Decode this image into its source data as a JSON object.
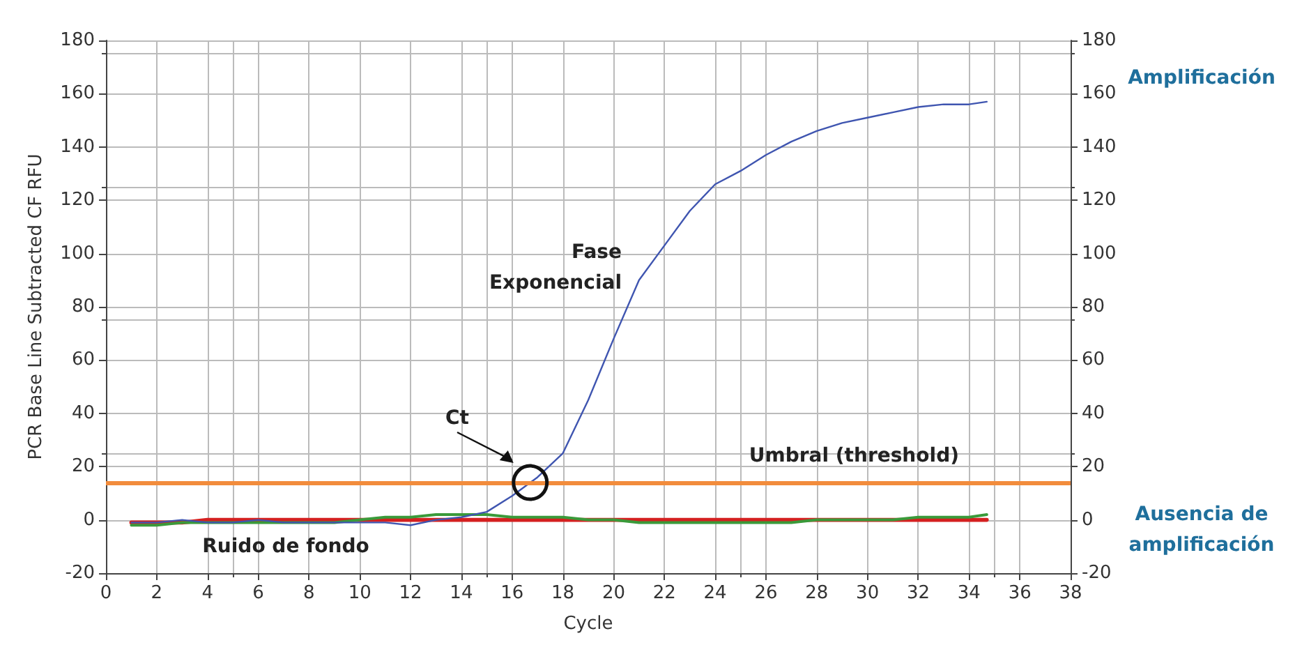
{
  "chart_data": {
    "type": "line",
    "xlabel": "Cycle",
    "ylabel": "PCR Base Line Subtracted CF RFU",
    "x": [
      1,
      2,
      3,
      4,
      5,
      6,
      7,
      8,
      9,
      10,
      11,
      12,
      13,
      14,
      15,
      16,
      17,
      18,
      19,
      20,
      21,
      22,
      23,
      24,
      25,
      26,
      27,
      28,
      29,
      30,
      31,
      32,
      33,
      34,
      34.7
    ],
    "series": [
      {
        "color": "#3f55b0",
        "values": [
          -1,
          -1,
          0,
          -1,
          -1,
          0,
          -1,
          -1,
          -1,
          -1,
          -1,
          -2,
          0,
          1,
          3,
          9,
          16,
          25,
          45,
          68,
          90,
          103,
          116,
          126,
          131,
          137,
          142,
          146,
          149,
          151,
          153,
          155,
          156,
          156,
          157
        ]
      },
      {
        "color": "#3a9a3a",
        "values": [
          -2,
          -2,
          -1,
          -1,
          -1,
          -1,
          -1,
          -1,
          -1,
          0,
          1,
          1,
          2,
          2,
          2,
          1,
          1,
          1,
          0,
          0,
          -1,
          -1,
          -1,
          -1,
          -1,
          -1,
          -1,
          0,
          0,
          0,
          0,
          1,
          1,
          1,
          2
        ]
      },
      {
        "color": "#d42020",
        "values": [
          -1,
          -1,
          -1,
          0,
          0,
          0,
          0,
          0,
          0,
          0,
          0,
          0,
          0,
          0,
          0,
          0,
          0,
          0,
          0,
          0,
          0,
          0,
          0,
          0,
          0,
          0,
          0,
          0,
          0,
          0,
          0,
          0,
          0,
          0,
          0
        ]
      }
    ],
    "xlim": [
      0,
      38
    ],
    "xticks": [
      0,
      2,
      4,
      6,
      8,
      10,
      12,
      14,
      16,
      18,
      20,
      22,
      24,
      26,
      28,
      30,
      32,
      34,
      36,
      38
    ],
    "ylim": [
      -20,
      180
    ],
    "yticks": [
      -20,
      0,
      20,
      40,
      60,
      80,
      100,
      120,
      140,
      160,
      180
    ],
    "y2lim": [
      -20,
      180
    ],
    "y2ticks": [
      -20,
      0,
      20,
      40,
      60,
      80,
      100,
      120,
      140,
      160,
      180
    ],
    "ref_lines": [
      {
        "axis": "y",
        "value": 14,
        "label": "Umbral (threshold)",
        "color": "#f28c3c",
        "line_style": "solid"
      }
    ],
    "annotations": [
      "Fase Exponencial",
      "Ct",
      "Ruido de fondo",
      "Amplificación",
      "Ausencia de amplificación"
    ],
    "grid": true,
    "marker": "none",
    "line_style": "solid"
  }
}
